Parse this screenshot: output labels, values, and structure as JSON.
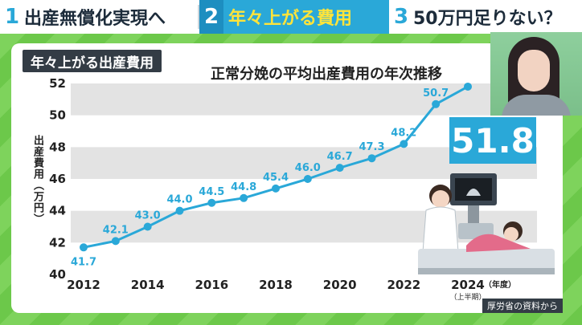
{
  "tabs": [
    {
      "num": "1",
      "label": "出産無償化実現へ",
      "active": false
    },
    {
      "num": "2",
      "label": "年々上がる費用",
      "active": true
    },
    {
      "num": "3",
      "label": "50万円足りない？",
      "active": false
    }
  ],
  "badge": "年々上がる出産費用",
  "source": "厚労省の資料から",
  "highlight_value": "51.8",
  "colors": {
    "accent": "#2aa8d8",
    "background": "#6cc84a",
    "header_text_active": "#ffe43a"
  },
  "chart_data": {
    "type": "line",
    "title": "正常分娩の平均出産費用の年次推移",
    "ylabel": "出産費用（万円）",
    "xlabel": "",
    "x": [
      2012,
      2013,
      2014,
      2015,
      2016,
      2017,
      2018,
      2019,
      2020,
      2021,
      2022,
      2023,
      2024
    ],
    "values": [
      41.7,
      42.1,
      43.0,
      44.0,
      44.5,
      44.8,
      45.4,
      46.0,
      46.7,
      47.3,
      48.2,
      50.7,
      51.8
    ],
    "point_labels": [
      "41.7",
      "42.1",
      "43.0",
      "44.0",
      "44.5",
      "44.8",
      "45.4",
      "46.0",
      "46.7",
      "47.3",
      "48.2",
      "50.7",
      ""
    ],
    "x_ticks": [
      2012,
      2014,
      2016,
      2018,
      2020,
      2022,
      2024
    ],
    "x_tick_labels": [
      "2012",
      "2014",
      "2016",
      "2018",
      "2020",
      "2022",
      "2024"
    ],
    "x_unit": "（年度）",
    "last_note": "（上半期）",
    "ylim": [
      40,
      52
    ],
    "y_ticks": [
      40,
      42,
      44,
      46,
      48,
      50,
      52
    ],
    "y_tick_labels": [
      "40",
      "42",
      "44",
      "46",
      "48",
      "50",
      "52"
    ],
    "grid": "horizontal-bands",
    "line_color": "#2aa8d8"
  }
}
